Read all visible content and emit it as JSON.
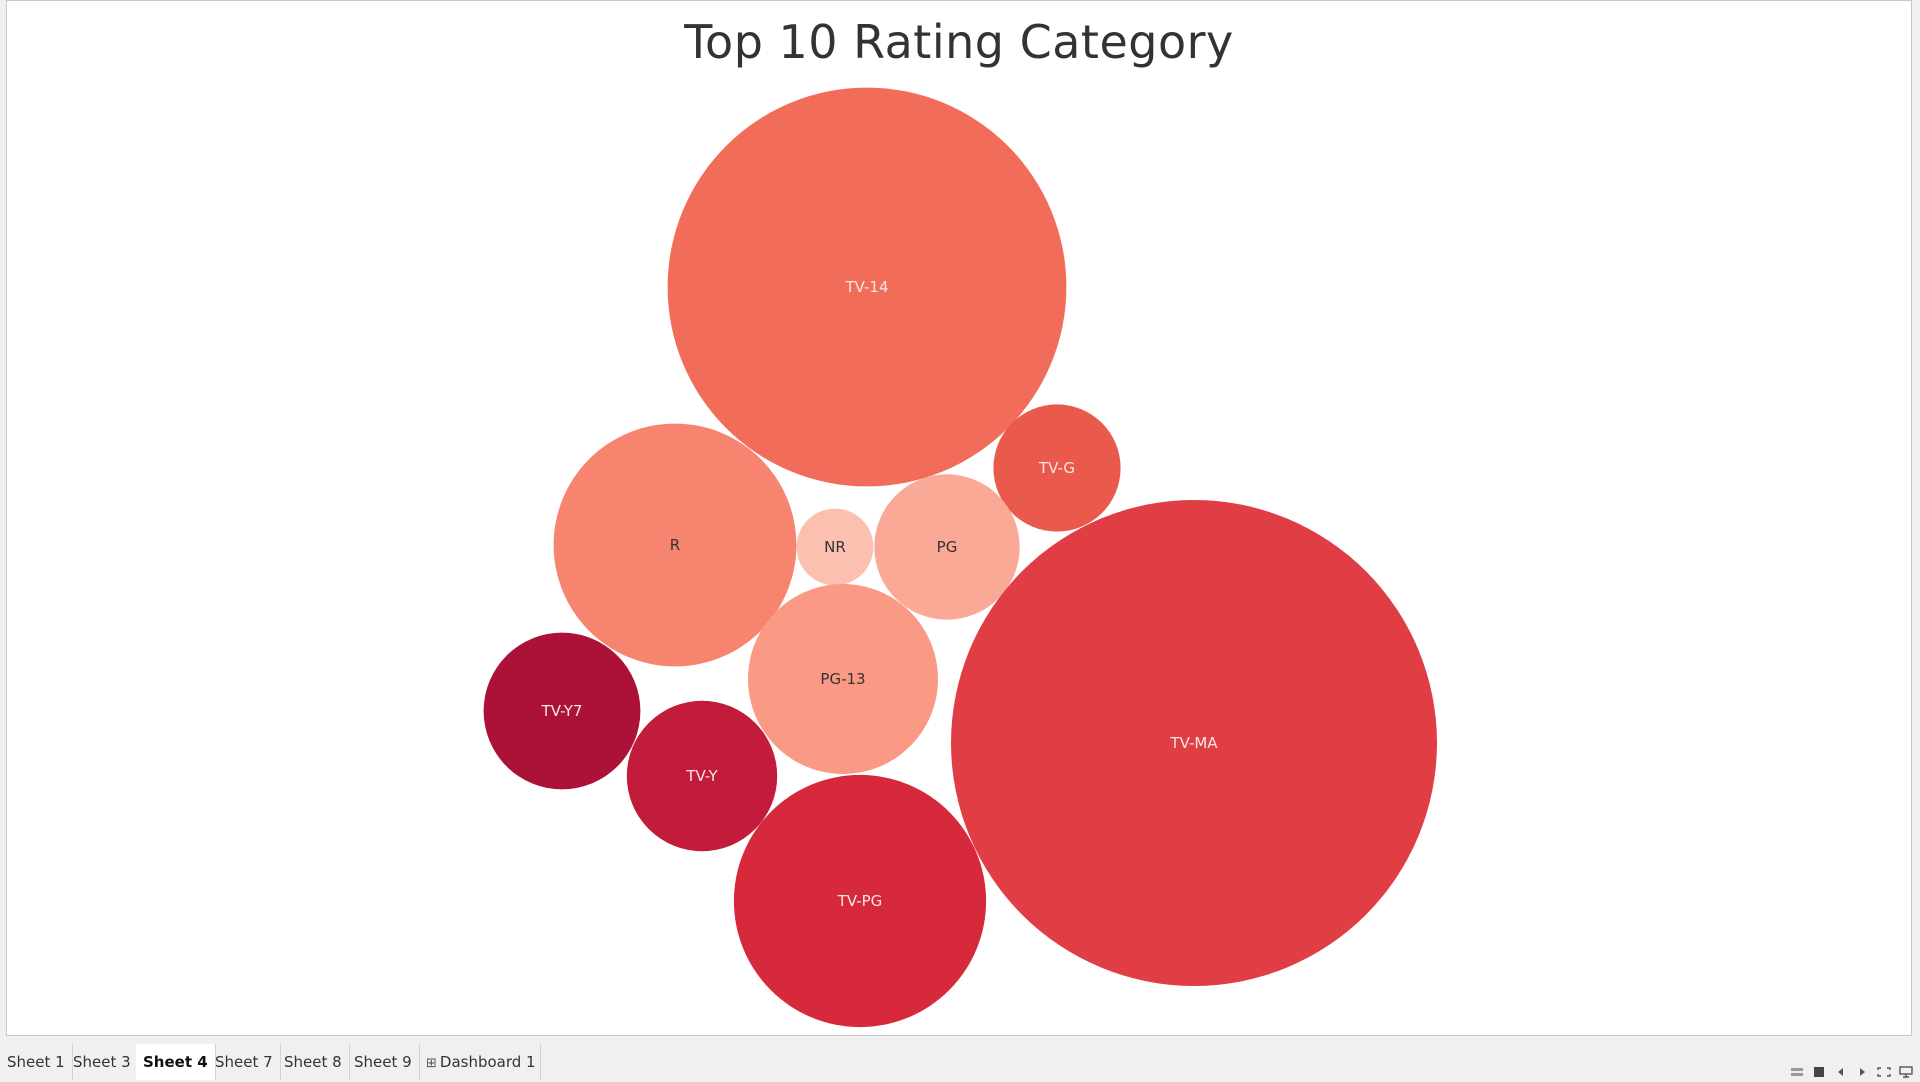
{
  "chart_data": {
    "type": "bubble",
    "title": "Top 10 Rating Category",
    "bubbles": [
      {
        "label": "TV-14",
        "value": 2160,
        "color": "#f26c5a",
        "label_color": "#f8e8e4"
      },
      {
        "label": "TV-G",
        "value": 220,
        "color": "#ea5a4c",
        "label_color": "#f8e8e4"
      },
      {
        "label": "R",
        "value": 800,
        "color": "#f7846e",
        "label_color": "#333333"
      },
      {
        "label": "NR",
        "value": 80,
        "color": "#fbc0b0",
        "label_color": "#333333"
      },
      {
        "label": "PG",
        "value": 287,
        "color": "#fba997",
        "label_color": "#333333"
      },
      {
        "label": "PG-13",
        "value": 490,
        "color": "#fa9a85",
        "label_color": "#333333"
      },
      {
        "label": "TV-MA",
        "value": 3207,
        "color": "#e13d45",
        "label_color": "#f8e8e4"
      },
      {
        "label": "TV-Y7",
        "value": 334,
        "color": "#ac1238",
        "label_color": "#f8e8e4"
      },
      {
        "label": "TV-Y",
        "value": 307,
        "color": "#c31b3c",
        "label_color": "#f8e8e4"
      },
      {
        "label": "TV-PG",
        "value": 863,
        "color": "#d6293b",
        "label_color": "#f8e8e4"
      }
    ]
  },
  "tabs": [
    "Sheet 1",
    "Sheet 3",
    "Sheet 4",
    "Sheet 7",
    "Sheet 8",
    "Sheet 9",
    "Dashboard 1"
  ],
  "active_tab": "Sheet 4",
  "tab_icons": {
    "Dashboard 1": "dashboard-grid-icon"
  },
  "footer_icons": [
    "show-tabs-icon",
    "show-sheet-icon",
    "previous-sheet-icon",
    "next-sheet-icon",
    "fit-window-icon",
    "presentation-mode-icon"
  ]
}
